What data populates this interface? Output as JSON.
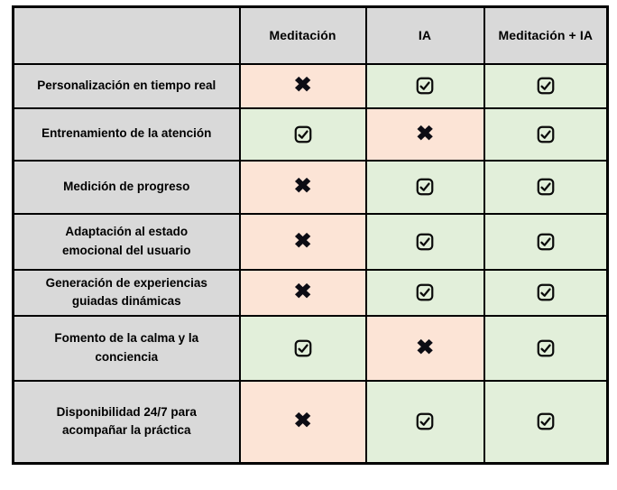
{
  "chart_data": {
    "type": "table",
    "title": "",
    "columns": [
      "",
      "Meditación",
      "IA",
      "Meditación + IA"
    ],
    "rows": [
      {
        "feature": "Personalización en tiempo real",
        "values": [
          false,
          true,
          true
        ]
      },
      {
        "feature": "Entrenamiento de la atención",
        "values": [
          true,
          false,
          true
        ]
      },
      {
        "feature": "Medición de progreso",
        "values": [
          false,
          true,
          true
        ]
      },
      {
        "feature": "Adaptación al estado\nemocional del usuario",
        "values": [
          false,
          true,
          true
        ]
      },
      {
        "feature": "Generación de experiencias\nguiadas dinámicas",
        "values": [
          false,
          true,
          true
        ]
      },
      {
        "feature": "Fomento de la calma y la\nconciencia",
        "values": [
          true,
          false,
          true
        ]
      },
      {
        "feature": "Disponibilidad 24/7 para\nacompañar la práctica",
        "values": [
          false,
          true,
          true
        ]
      }
    ],
    "legend": "checkbox = feature present, cross = feature absent",
    "grid": "on"
  },
  "icons": {
    "true_icon": "checkbox-checked-icon",
    "false_icon": "cross-icon",
    "cross_glyph": "✖"
  },
  "colors": {
    "header_bg": "#d9d9d9",
    "yes_bg": "#e2efda",
    "no_bg": "#fce4d6",
    "border": "#000000",
    "text": "#000000"
  }
}
